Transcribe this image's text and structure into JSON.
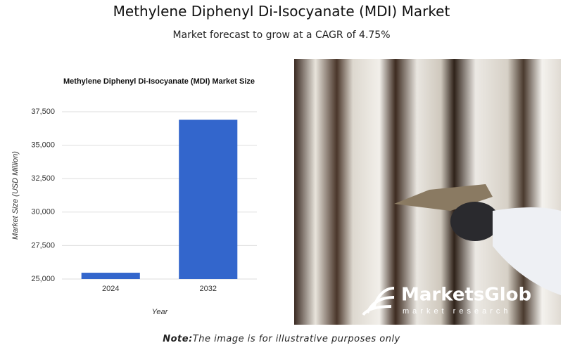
{
  "header": {
    "title": "Methylene Diphenyl Di-Isocyanate (MDI) Market",
    "subtitle": "Market forecast to grow at a CAGR of 4.75%"
  },
  "chart_data": {
    "type": "bar",
    "title": "Methylene Diphenyl Di-Isocyanate (MDI) Market Size",
    "x_label": "Year",
    "y_label": "Market Size (USD Million)",
    "categories": [
      "2024",
      "2032"
    ],
    "values": [
      25470,
      36900
    ],
    "color": "#3366cc",
    "ylim": [
      25000,
      37500
    ],
    "yticks": [
      {
        "value": 25000,
        "label": "25,000"
      },
      {
        "value": 27500,
        "label": "27,500"
      },
      {
        "value": 30000,
        "label": "30,000"
      },
      {
        "value": 32500,
        "label": "32,500"
      },
      {
        "value": 35000,
        "label": "35,000"
      },
      {
        "value": 37500,
        "label": "37,500"
      }
    ],
    "grid": true
  },
  "image": {
    "logo_name": "MarketsGlob",
    "logo_tagline": "market research"
  },
  "note": {
    "label": "Note:",
    "text": "The image is for illustrative purposes only"
  }
}
